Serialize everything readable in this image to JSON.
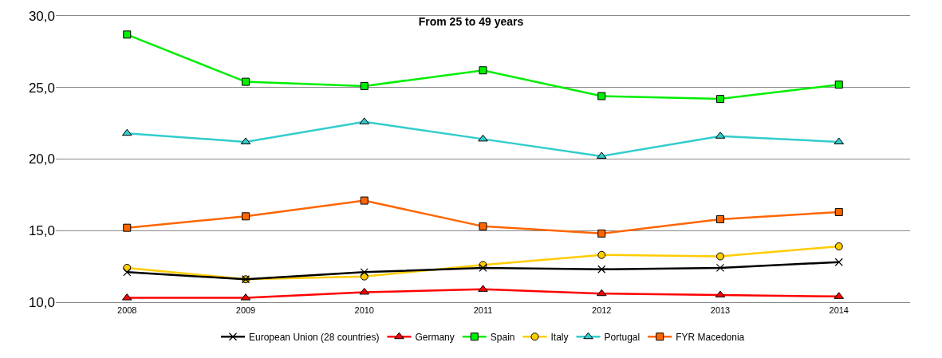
{
  "chart_data": {
    "type": "line",
    "title": "From 25 to 49 years",
    "categories": [
      "2008",
      "2009",
      "2010",
      "2011",
      "2012",
      "2013",
      "2014"
    ],
    "series": [
      {
        "name": "European Union (28 countries)",
        "color": "#000000",
        "marker": "cross",
        "values": [
          12.1,
          11.6,
          12.1,
          12.4,
          12.3,
          12.4,
          12.8
        ]
      },
      {
        "name": "Germany",
        "color": "#ff0000",
        "marker": "triangle",
        "values": [
          10.3,
          10.3,
          10.7,
          10.9,
          10.6,
          10.5,
          10.4
        ]
      },
      {
        "name": "Spain",
        "color": "#00ee00",
        "marker": "square",
        "values": [
          28.7,
          25.4,
          25.1,
          26.2,
          24.4,
          24.2,
          25.2
        ]
      },
      {
        "name": "Italy",
        "color": "#ffcc00",
        "marker": "circle",
        "values": [
          12.4,
          11.6,
          11.8,
          12.6,
          13.3,
          13.2,
          13.9
        ]
      },
      {
        "name": "Portugal",
        "color": "#33cccc",
        "marker": "triangle",
        "values": [
          21.8,
          21.2,
          22.6,
          21.4,
          20.2,
          21.6,
          21.2
        ]
      },
      {
        "name": "FYR Macedonia",
        "color": "#ff6600",
        "marker": "square",
        "values": [
          15.2,
          16.0,
          17.1,
          15.3,
          14.8,
          15.8,
          16.3
        ]
      }
    ],
    "ylim": [
      10,
      30
    ],
    "yticks": [
      {
        "value": 10,
        "label": "10,0"
      },
      {
        "value": 15,
        "label": "15,0"
      },
      {
        "value": 20,
        "label": "20,0"
      },
      {
        "value": 25,
        "label": "25,0"
      },
      {
        "value": 30,
        "label": "30,0"
      }
    ],
    "grid": "y",
    "legend": "bottom",
    "line_style": "solid"
  }
}
